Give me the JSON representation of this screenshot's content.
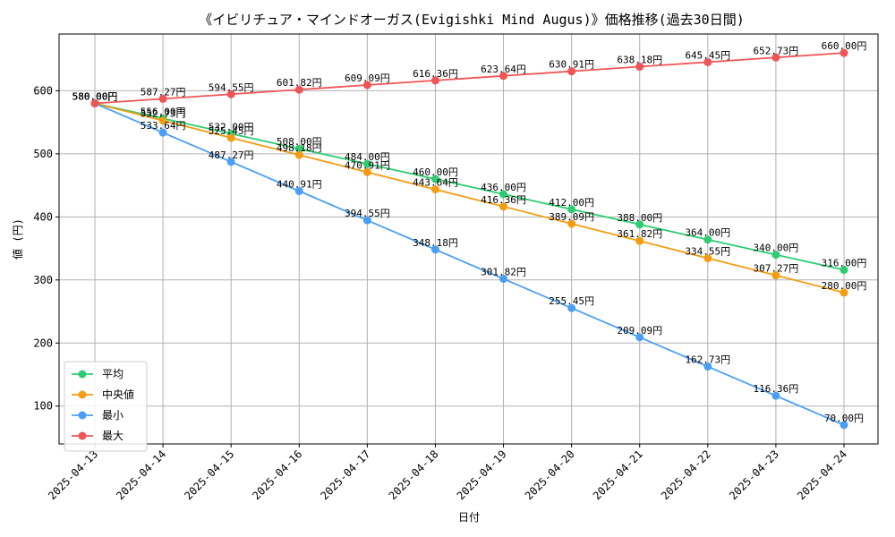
{
  "chart_data": {
    "type": "line",
    "title": "《イビリチュア・マインドオーガス(Evigishki Mind Augus)》価格推移(過去30日間)",
    "xlabel": "日付",
    "ylabel": "値 (円)",
    "categories": [
      "2025-04-13",
      "2025-04-14",
      "2025-04-15",
      "2025-04-16",
      "2025-04-17",
      "2025-04-18",
      "2025-04-19",
      "2025-04-20",
      "2025-04-21",
      "2025-04-22",
      "2025-04-23",
      "2025-04-24"
    ],
    "yticks": [
      100,
      200,
      300,
      400,
      500,
      600
    ],
    "ylim": [
      40,
      690
    ],
    "grid": true,
    "legend_position": "lower-left",
    "value_suffix": "円",
    "series": [
      {
        "name": "平均",
        "color": "#2ecc71",
        "values": [
          580.0,
          556.0,
          532.0,
          508.0,
          484.0,
          460.0,
          436.0,
          412.0,
          388.0,
          364.0,
          340.0,
          316.0
        ]
      },
      {
        "name": "中央値",
        "color": "#f39c12",
        "values": [
          580.0,
          552.73,
          525.45,
          498.18,
          470.91,
          443.64,
          416.36,
          389.09,
          361.82,
          334.55,
          307.27,
          280.0
        ]
      },
      {
        "name": "最小",
        "color": "#4a9ff5",
        "values": [
          580.0,
          533.64,
          487.27,
          440.91,
          394.55,
          348.18,
          301.82,
          255.45,
          209.09,
          162.73,
          116.36,
          70.0
        ]
      },
      {
        "name": "最大",
        "color": "#f05454",
        "values": [
          580.0,
          587.27,
          594.55,
          601.82,
          609.09,
          616.36,
          623.64,
          630.91,
          638.18,
          645.45,
          652.73,
          660.0
        ]
      }
    ]
  }
}
